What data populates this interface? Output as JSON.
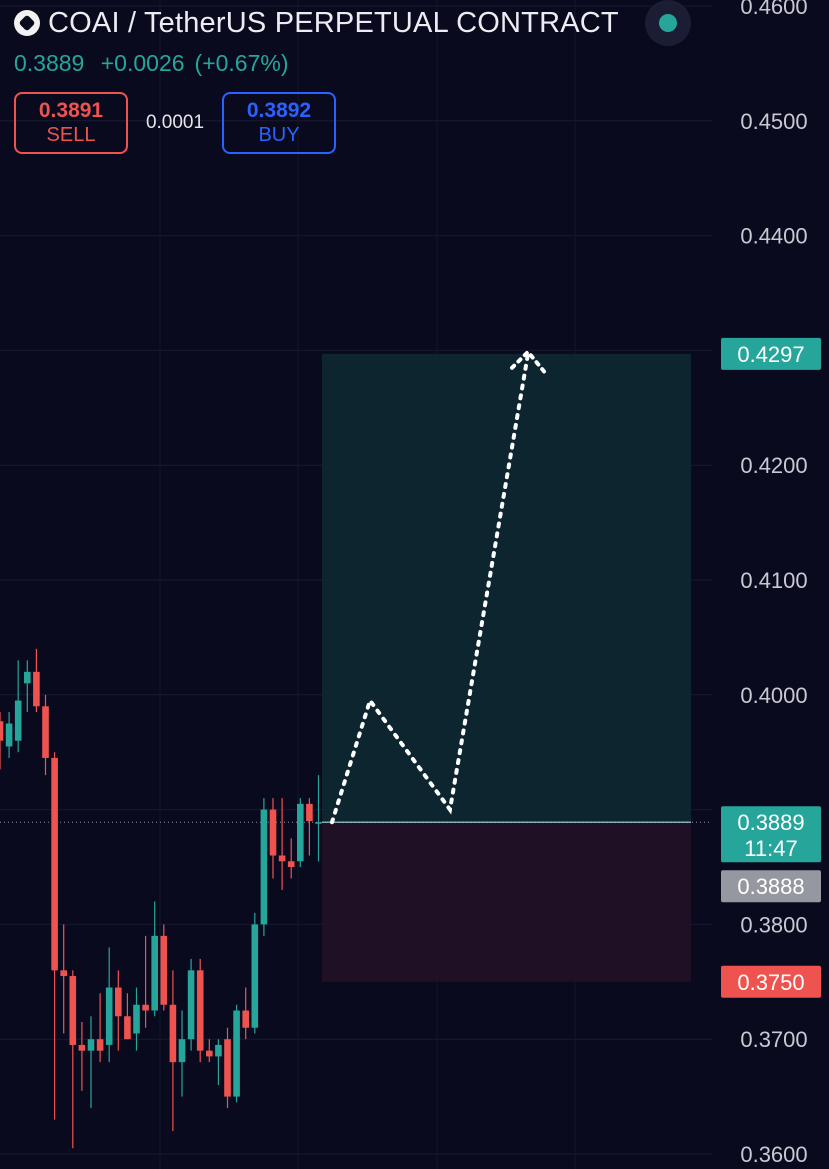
{
  "header": {
    "title": "COAI / TetherUS PERPETUAL CONTRACT",
    "last_price": "0.3889",
    "change": "+0.0026",
    "change_pct": "(+0.67%)",
    "sell_price": "0.3891",
    "sell_label": "SELL",
    "spread": "0.0001",
    "buy_price": "0.3892",
    "buy_label": "BUY"
  },
  "colors": {
    "up": "#26a69a",
    "down": "#ef5350",
    "buy": "#2962ff",
    "background": "#0a0a1f"
  },
  "chart_data": {
    "type": "candlestick",
    "ylim": [
      0.36,
      0.46
    ],
    "y_ticks": [
      "0.3600",
      "0.3700",
      "0.3800",
      "0.4000",
      "0.4100",
      "0.4200",
      "0.4400",
      "0.4500",
      "0.4600"
    ],
    "grid": true,
    "candles": [
      {
        "o": 0.3977,
        "h": 0.3985,
        "l": 0.3935,
        "c": 0.396
      },
      {
        "o": 0.3955,
        "h": 0.3985,
        "l": 0.3945,
        "c": 0.3975
      },
      {
        "o": 0.396,
        "h": 0.403,
        "l": 0.395,
        "c": 0.3995
      },
      {
        "o": 0.401,
        "h": 0.403,
        "l": 0.3985,
        "c": 0.402
      },
      {
        "o": 0.402,
        "h": 0.404,
        "l": 0.3985,
        "c": 0.399
      },
      {
        "o": 0.399,
        "h": 0.4,
        "l": 0.393,
        "c": 0.3945
      },
      {
        "o": 0.3945,
        "h": 0.395,
        "l": 0.363,
        "c": 0.376
      },
      {
        "o": 0.376,
        "h": 0.38,
        "l": 0.3705,
        "c": 0.3755
      },
      {
        "o": 0.3755,
        "h": 0.376,
        "l": 0.3605,
        "c": 0.3695
      },
      {
        "o": 0.3695,
        "h": 0.3715,
        "l": 0.3655,
        "c": 0.369
      },
      {
        "o": 0.369,
        "h": 0.372,
        "l": 0.364,
        "c": 0.37
      },
      {
        "o": 0.37,
        "h": 0.374,
        "l": 0.368,
        "c": 0.369
      },
      {
        "o": 0.3695,
        "h": 0.378,
        "l": 0.368,
        "c": 0.3745
      },
      {
        "o": 0.3745,
        "h": 0.376,
        "l": 0.369,
        "c": 0.372
      },
      {
        "o": 0.372,
        "h": 0.374,
        "l": 0.37,
        "c": 0.37
      },
      {
        "o": 0.3705,
        "h": 0.3745,
        "l": 0.369,
        "c": 0.373
      },
      {
        "o": 0.373,
        "h": 0.379,
        "l": 0.371,
        "c": 0.3725
      },
      {
        "o": 0.3725,
        "h": 0.382,
        "l": 0.372,
        "c": 0.379
      },
      {
        "o": 0.379,
        "h": 0.38,
        "l": 0.3725,
        "c": 0.373
      },
      {
        "o": 0.373,
        "h": 0.376,
        "l": 0.362,
        "c": 0.368
      },
      {
        "o": 0.368,
        "h": 0.3725,
        "l": 0.365,
        "c": 0.37
      },
      {
        "o": 0.37,
        "h": 0.377,
        "l": 0.369,
        "c": 0.376
      },
      {
        "o": 0.376,
        "h": 0.377,
        "l": 0.368,
        "c": 0.369
      },
      {
        "o": 0.369,
        "h": 0.37,
        "l": 0.368,
        "c": 0.3685
      },
      {
        "o": 0.3685,
        "h": 0.37,
        "l": 0.366,
        "c": 0.3695
      },
      {
        "o": 0.37,
        "h": 0.371,
        "l": 0.364,
        "c": 0.365
      },
      {
        "o": 0.365,
        "h": 0.373,
        "l": 0.3645,
        "c": 0.3725
      },
      {
        "o": 0.3725,
        "h": 0.3745,
        "l": 0.37,
        "c": 0.371
      },
      {
        "o": 0.371,
        "h": 0.381,
        "l": 0.3705,
        "c": 0.38
      },
      {
        "o": 0.38,
        "h": 0.391,
        "l": 0.379,
        "c": 0.39
      },
      {
        "o": 0.39,
        "h": 0.391,
        "l": 0.384,
        "c": 0.386
      },
      {
        "o": 0.386,
        "h": 0.391,
        "l": 0.383,
        "c": 0.3855
      },
      {
        "o": 0.3855,
        "h": 0.3875,
        "l": 0.384,
        "c": 0.385
      },
      {
        "o": 0.3855,
        "h": 0.391,
        "l": 0.385,
        "c": 0.3905
      },
      {
        "o": 0.3905,
        "h": 0.391,
        "l": 0.386,
        "c": 0.389
      },
      {
        "o": 0.3888,
        "h": 0.393,
        "l": 0.3855,
        "c": 0.3889
      }
    ],
    "position": {
      "entry": 0.3889,
      "target": 0.4297,
      "stop": 0.375,
      "entry_time_label": "11:47"
    },
    "projected_path": [
      0.3889,
      0.3995,
      0.39,
      0.4297
    ],
    "price_labels": {
      "target": "0.4297",
      "last": "0.3889",
      "previous": "0.3888",
      "stop": "0.3750"
    }
  }
}
